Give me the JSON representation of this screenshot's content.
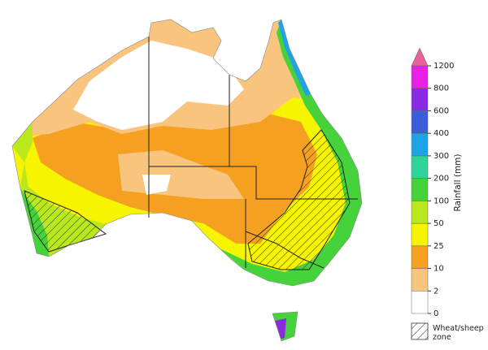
{
  "legend": {
    "title": "Rainfall (mm)",
    "ticks": [
      0,
      2,
      10,
      25,
      50,
      100,
      200,
      300,
      400,
      600,
      800,
      1200
    ],
    "colors": [
      "#ffffff",
      "#f9c47e",
      "#f5a020",
      "#f7f400",
      "#b9e81c",
      "#46d23a",
      "#2fd49a",
      "#1ea4e6",
      "#3a5ed8",
      "#8a2be2",
      "#ea20e6"
    ],
    "over_color": "#e8609c",
    "hatch_label": "Wheat/sheep zone"
  }
}
